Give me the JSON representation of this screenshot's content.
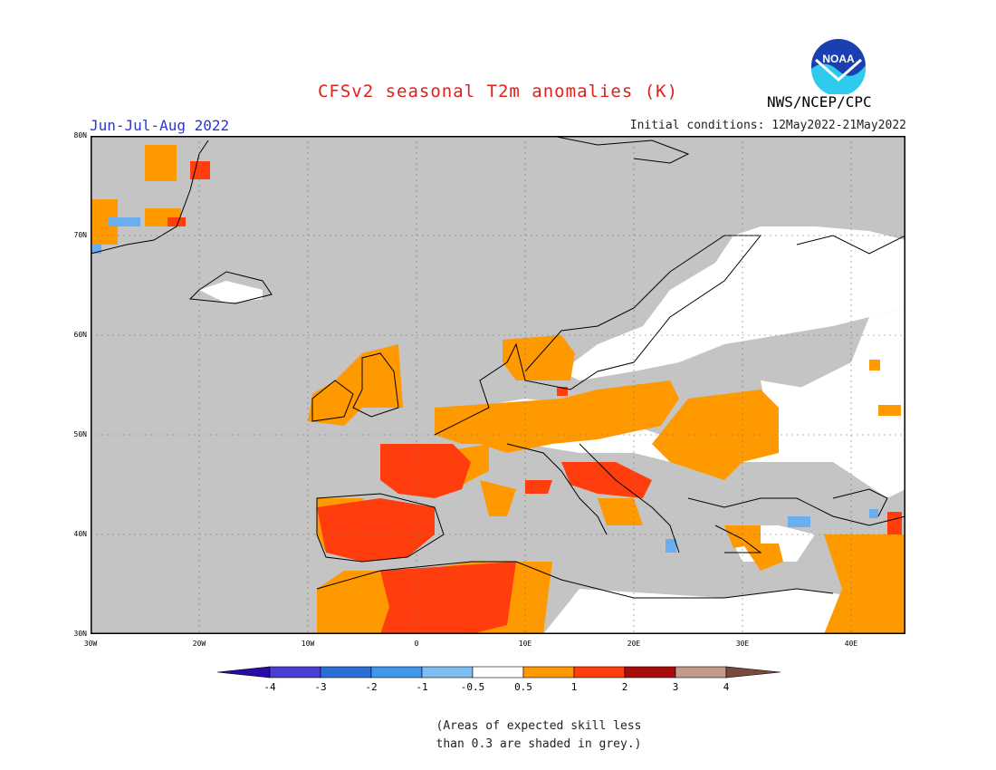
{
  "header": {
    "title": "CFSv2 seasonal T2m anomalies (K)",
    "title_color": "#e0201a",
    "season": "Jun-Jul-Aug 2022",
    "initial_conditions": "Initial conditions: 12May2022-21May2022",
    "agency": "NWS/NCEP/CPC",
    "logo_text": "NOAA"
  },
  "axes": {
    "lat_labels": [
      "80N",
      "70N",
      "60N",
      "50N",
      "40N",
      "30N"
    ],
    "lon_labels": [
      "30W",
      "20W",
      "10W",
      "0",
      "10E",
      "20E",
      "30E",
      "40E"
    ]
  },
  "colorbar": {
    "labels": [
      "-4",
      "-3",
      "-2",
      "-1",
      "-0.5",
      "0.5",
      "1",
      "2",
      "3",
      "4"
    ],
    "colors": [
      "#2a0ba8",
      "#4a3fd1",
      "#2a6fd6",
      "#3d97ec",
      "#7fbef2",
      "#ffffff",
      "#ff9900",
      "#ff3d0d",
      "#a80d0d",
      "#c49a8a",
      "#7a4a3c"
    ]
  },
  "legend_colors": {
    "grey_skill": "#c4c4c4",
    "neutral": "#ffffff",
    "warm_0_5_1": "#ff9900",
    "warm_1_2": "#ff3d0d",
    "cool": "#6aaef0"
  },
  "note": {
    "line1": "(Areas of expected skill less",
    "line2": "than 0.3 are shaded in grey.)"
  }
}
